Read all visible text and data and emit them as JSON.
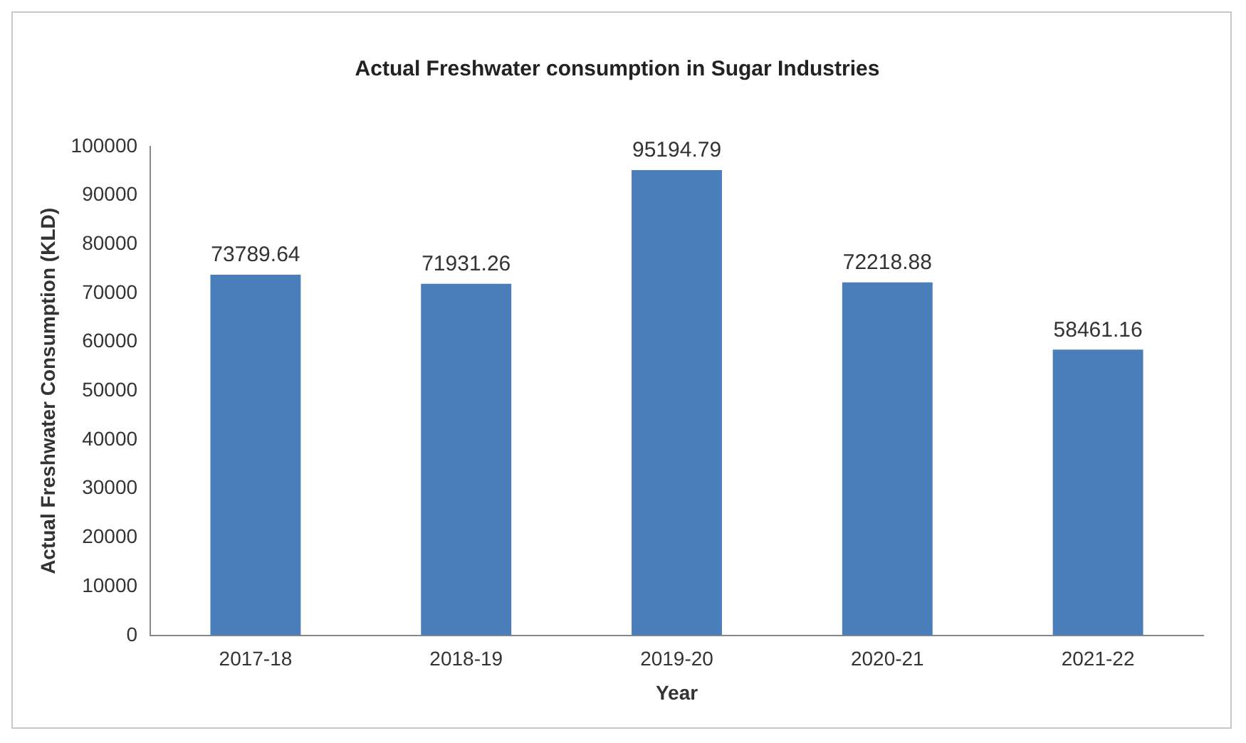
{
  "chart_data": {
    "type": "bar",
    "title": "Actual Freshwater consumption in Sugar Industries",
    "xlabel": "Year",
    "ylabel": "Actual Freshwater Consumption (KLD)",
    "categories": [
      "2017-18",
      "2018-19",
      "2019-20",
      "2020-21",
      "2021-22"
    ],
    "values": [
      73789.64,
      71931.26,
      95194.79,
      72218.88,
      58461.16
    ],
    "color": "#4a7ebb",
    "ylim": [
      0,
      100000
    ],
    "yticks": [
      0,
      10000,
      20000,
      30000,
      40000,
      50000,
      60000,
      70000,
      80000,
      90000,
      100000
    ],
    "grid": false,
    "data_labels": true
  }
}
